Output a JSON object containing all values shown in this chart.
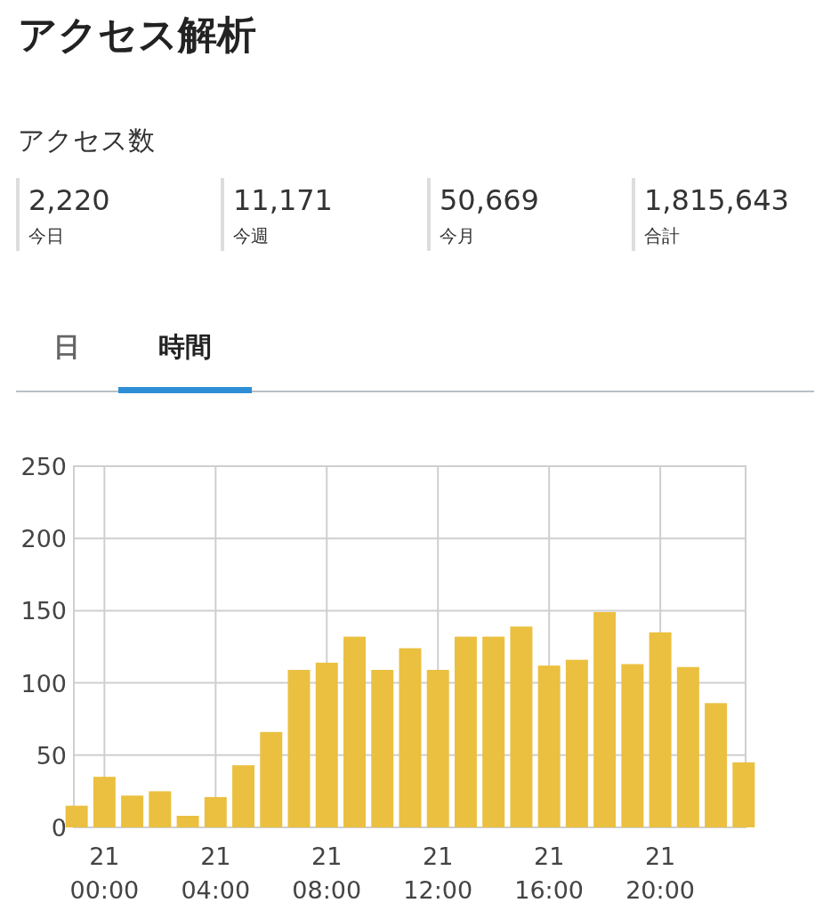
{
  "chart_data": [
    {
      "type": "other",
      "title": "アクセス解析",
      "subtitle": "アクセス数",
      "annotations": [
        "2,220",
        "今日",
        "11,171",
        "今週",
        "50,669",
        "今月",
        "1,815,643",
        "合計",
        "日",
        "時間"
      ]
    },
    {
      "type": "bar",
      "categories": [
        null,
        "21\n00:00",
        null,
        null,
        null,
        "21\n04:00",
        null,
        null,
        null,
        "21\n08:00",
        null,
        null,
        null,
        "21\n12:00",
        null,
        null,
        null,
        "21\n16:00",
        null,
        null,
        null,
        "21\n20:00",
        null,
        null,
        null
      ],
      "values": [
        15,
        35,
        22,
        25,
        8,
        21,
        43,
        66,
        109,
        114,
        132,
        109,
        124,
        109,
        132,
        132,
        139,
        112,
        116,
        149,
        113,
        135,
        111,
        86,
        45
      ],
      "color": "#ebc040",
      "ylim": [
        0,
        250
      ],
      "yticks": [
        0,
        50,
        100,
        150,
        200,
        250
      ],
      "grid": true
    }
  ]
}
